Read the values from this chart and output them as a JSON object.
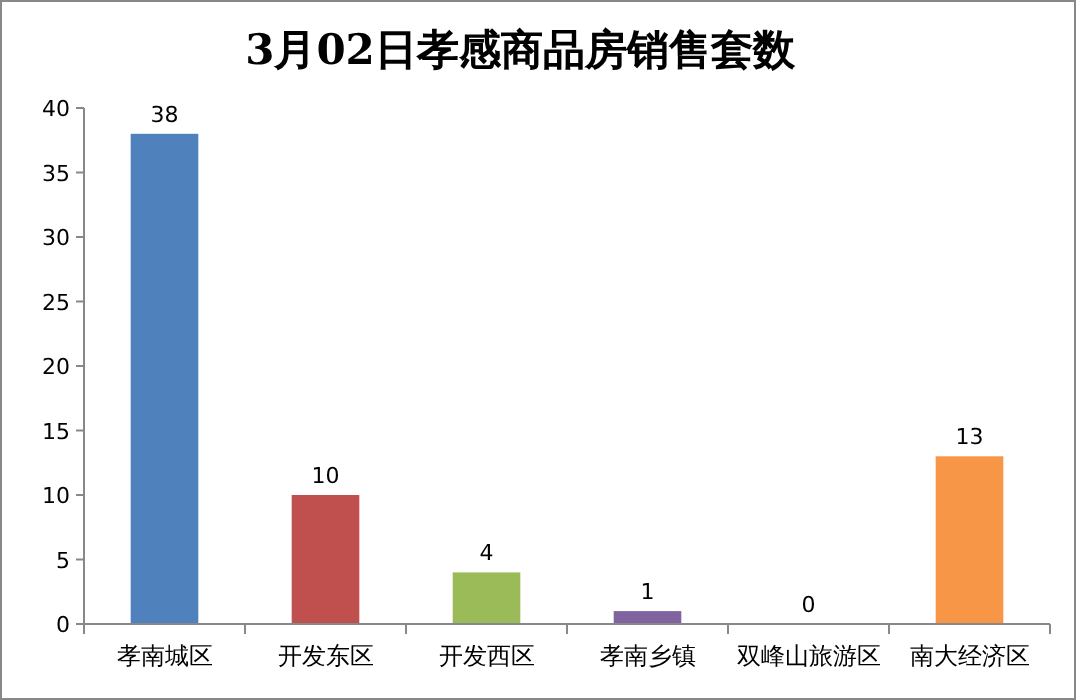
{
  "chart_data": {
    "type": "bar",
    "title": "3月02日孝感商品房销售套数",
    "categories": [
      "孝南城区",
      "开发东区",
      "开发西区",
      "孝南乡镇",
      "双峰山旅游区",
      "南大经济区"
    ],
    "values": [
      38,
      10,
      4,
      1,
      0,
      13
    ],
    "colors": [
      "#4f81bd",
      "#c0504d",
      "#9bbb59",
      "#8064a2",
      "#4bacc6",
      "#f79646"
    ],
    "ylim": [
      0,
      40
    ],
    "yticks": [
      0,
      5,
      10,
      15,
      20,
      25,
      30,
      35,
      40
    ],
    "data_labels": true,
    "grid": false
  }
}
